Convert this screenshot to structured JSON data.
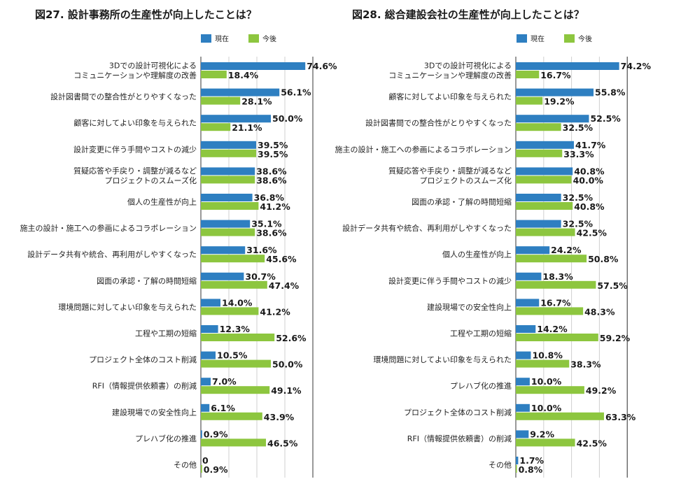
{
  "colors": {
    "current": "#2E7FC1",
    "future": "#8DC63F"
  },
  "chart_data": [
    {
      "type": "bar",
      "orientation": "horizontal",
      "title": "図27. 設計事務所の生産性が向上したことは？",
      "legend": [
        "現在",
        "今後"
      ],
      "legend_placement": "top",
      "xlim": [
        0,
        100
      ],
      "grid": true,
      "categories": [
        [
          "3Dでの設計可視化による",
          "コミュニケーションや理解度の改善"
        ],
        [
          "設計図書間での整合性がとりやすくなった"
        ],
        [
          "顧客に対してよい印象を与えられた"
        ],
        [
          "設計変更に伴う手間やコストの減少"
        ],
        [
          "質疑応答や手戻り・調整が減るなど",
          "プロジェクトのスムーズ化"
        ],
        [
          "個人の生産性が向上"
        ],
        [
          "施主の設計・施工への参画によるコラボレーション"
        ],
        [
          "設計データ共有や統合、再利用がしやすくなった"
        ],
        [
          "図面の承認・了解の時間短縮"
        ],
        [
          "環境問題に対してよい印象を与えられた"
        ],
        [
          "工程や工期の短縮"
        ],
        [
          "プロジェクト全体のコスト削減"
        ],
        [
          "RFI（情報提供依頼書）の削減"
        ],
        [
          "建設現場での安全性向上"
        ],
        [
          "プレハブ化の推進"
        ],
        [
          "その他"
        ]
      ],
      "series": [
        {
          "name": "現在",
          "values": [
            74.6,
            56.1,
            50.0,
            39.5,
            38.6,
            36.8,
            35.1,
            31.6,
            30.7,
            14.0,
            12.3,
            10.5,
            7.0,
            6.1,
            0.9,
            0
          ],
          "labels": [
            "74.6%",
            "56.1%",
            "50.0%",
            "39.5%",
            "38.6%",
            "36.8%",
            "35.1%",
            "31.6%",
            "30.7%",
            "14.0%",
            "12.3%",
            "10.5%",
            "7.0%",
            "6.1%",
            "0.9%",
            "0"
          ]
        },
        {
          "name": "今後",
          "values": [
            18.4,
            28.1,
            21.1,
            39.5,
            38.6,
            41.2,
            38.6,
            45.6,
            47.4,
            41.2,
            52.6,
            50.0,
            49.1,
            43.9,
            46.5,
            0.9
          ],
          "labels": [
            "18.4%",
            "28.1%",
            "21.1%",
            "39.5%",
            "38.6%",
            "41.2%",
            "38.6%",
            "45.6%",
            "47.4%",
            "41.2%",
            "52.6%",
            "50.0%",
            "49.1%",
            "43.9%",
            "46.5%",
            "0.9%"
          ]
        }
      ]
    },
    {
      "type": "bar",
      "orientation": "horizontal",
      "title": "図28. 総合建設会社の生産性が向上したことは？",
      "legend": [
        "現在",
        "今後"
      ],
      "legend_placement": "top",
      "xlim": [
        0,
        100
      ],
      "grid": true,
      "categories": [
        [
          "3Dでの設計可視化による",
          "コミュニケーションや理解度の改善"
        ],
        [
          "顧客に対してよい印象を与えられた"
        ],
        [
          "設計図書間での整合性がとりやすくなった"
        ],
        [
          "施主の設計・施工への参画によるコラボレーション"
        ],
        [
          "質疑応答や手戻り・調整が減るなど",
          "プロジェクトのスムーズ化"
        ],
        [
          "図面の承認・了解の時間短縮"
        ],
        [
          "設計データ共有や統合、再利用がしやすくなった"
        ],
        [
          "個人の生産性が向上"
        ],
        [
          "設計変更に伴う手間やコストの減少"
        ],
        [
          "建設現場での安全性向上"
        ],
        [
          "工程や工期の短縮"
        ],
        [
          "環境問題に対してよい印象を与えられた"
        ],
        [
          "プレハブ化の推進"
        ],
        [
          "プロジェクト全体のコスト削減"
        ],
        [
          "RFI（情報提供依頼書）の削減"
        ],
        [
          "その他"
        ]
      ],
      "series": [
        {
          "name": "現在",
          "values": [
            74.2,
            55.8,
            52.5,
            41.7,
            40.8,
            32.5,
            32.5,
            24.2,
            18.3,
            16.7,
            14.2,
            10.8,
            10.0,
            10.0,
            9.2,
            1.7
          ],
          "labels": [
            "74.2%",
            "55.8%",
            "52.5%",
            "41.7%",
            "40.8%",
            "32.5%",
            "32.5%",
            "24.2%",
            "18.3%",
            "16.7%",
            "14.2%",
            "10.8%",
            "10.0%",
            "10.0%",
            "9.2%",
            "1.7%"
          ]
        },
        {
          "name": "今後",
          "values": [
            16.7,
            19.2,
            32.5,
            33.3,
            40.0,
            40.8,
            42.5,
            50.8,
            57.5,
            48.3,
            59.2,
            38.3,
            49.2,
            63.3,
            42.5,
            0.8
          ],
          "labels": [
            "16.7%",
            "19.2%",
            "32.5%",
            "33.3%",
            "40.0%",
            "40.8%",
            "42.5%",
            "50.8%",
            "57.5%",
            "48.3%",
            "59.2%",
            "38.3%",
            "49.2%",
            "63.3%",
            "42.5%",
            "0.8%"
          ]
        }
      ]
    }
  ]
}
